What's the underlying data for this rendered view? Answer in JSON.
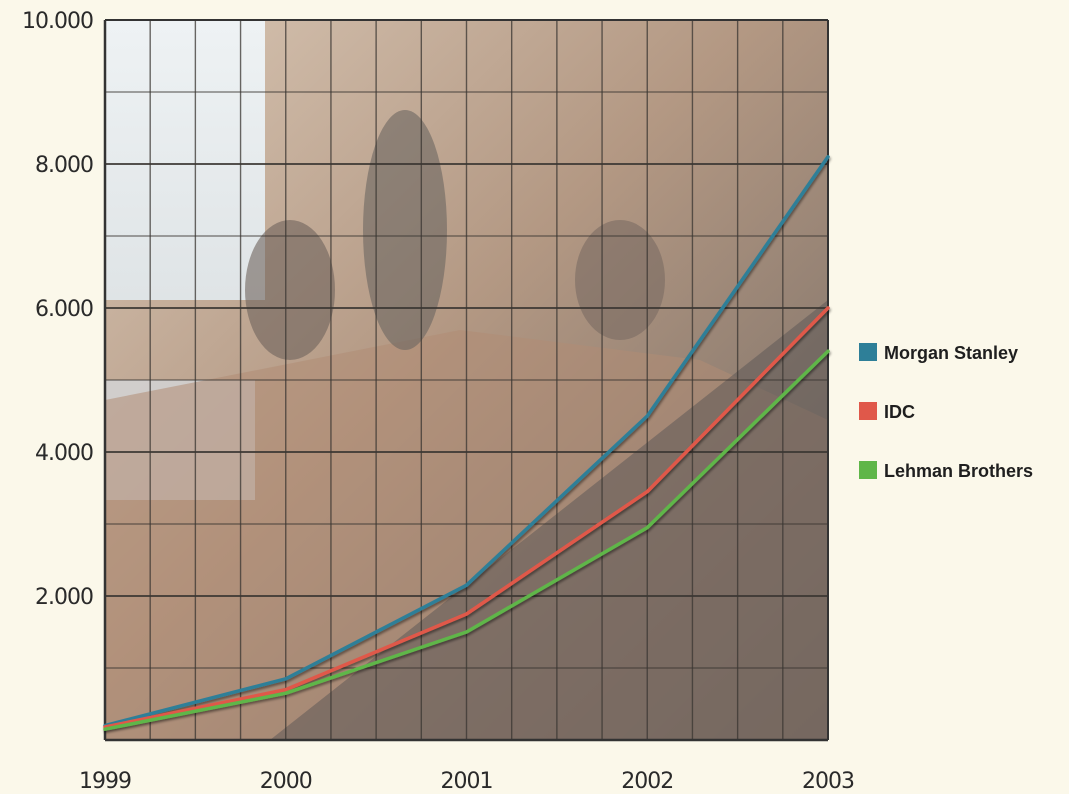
{
  "chart_data": {
    "type": "line",
    "x": [
      "1999",
      "2000",
      "2001",
      "2002",
      "2003"
    ],
    "ylim": [
      0,
      10000
    ],
    "yticks": [
      "10.000",
      "8.000",
      "6.000",
      "4.000",
      "2.000"
    ],
    "ytick_values": [
      10000,
      8000,
      6000,
      4000,
      2000
    ],
    "grid": true,
    "legend_position": "right",
    "series": [
      {
        "name": "Morgan Stanley",
        "color": "#2e7f98",
        "values": [
          200,
          850,
          2150,
          4500,
          8100
        ]
      },
      {
        "name": "IDC",
        "color": "#e0584a",
        "values": [
          180,
          700,
          1750,
          3450,
          6000
        ]
      },
      {
        "name": "Lehman Brothers",
        "color": "#5fb648",
        "values": [
          150,
          650,
          1500,
          2950,
          5400
        ]
      }
    ]
  }
}
